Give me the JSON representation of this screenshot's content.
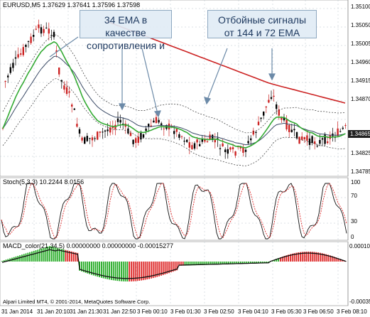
{
  "main_panel": {
    "header": "EURUSD,M5  1.37629 1.37641 1.37596 1.37598",
    "price_labels": [
      "1.35100",
      "1.35050",
      "1.35005",
      "1.34960",
      "1.34915",
      "1.34870",
      "1.34825",
      "1.34785"
    ],
    "price_marker": "1.34865",
    "callout_left": "34 EMA в качестве сопротивления и",
    "callout_right": "Отбойные сигналы от 144 и 72 EMA"
  },
  "stoch_panel": {
    "header": "Stoch(5,3,3) 10.2244 8.0156",
    "levels": [
      "100",
      "70",
      "30",
      "0"
    ]
  },
  "macd_panel": {
    "header": "MACD_color(21,34,5) 0.00000000 0.00000000 -0.00015277",
    "levels": [
      "0.000107",
      "-0.000359"
    ],
    "footer": "Alpari Limited MT4, © 2001-2014, MetaQuotes Software Corp."
  },
  "time_axis": [
    "31 Jan 2014",
    "31 Jan 20:10",
    "31 Jan 21:30",
    "31 Jan 22:50",
    "3 Feb 00:10",
    "3 Feb 01:30",
    "3 Feb 02:50",
    "3 Feb 04:10",
    "3 Feb 05:30",
    "3 Feb 06:50",
    "3 Feb 08:10"
  ],
  "colors": {
    "ema34": "#33aa33",
    "ema144": "#cc2222",
    "bull": "#000000",
    "bear": "#cc2222",
    "macd_pos": "#22aa22",
    "macd_neg": "#dd2222"
  }
}
